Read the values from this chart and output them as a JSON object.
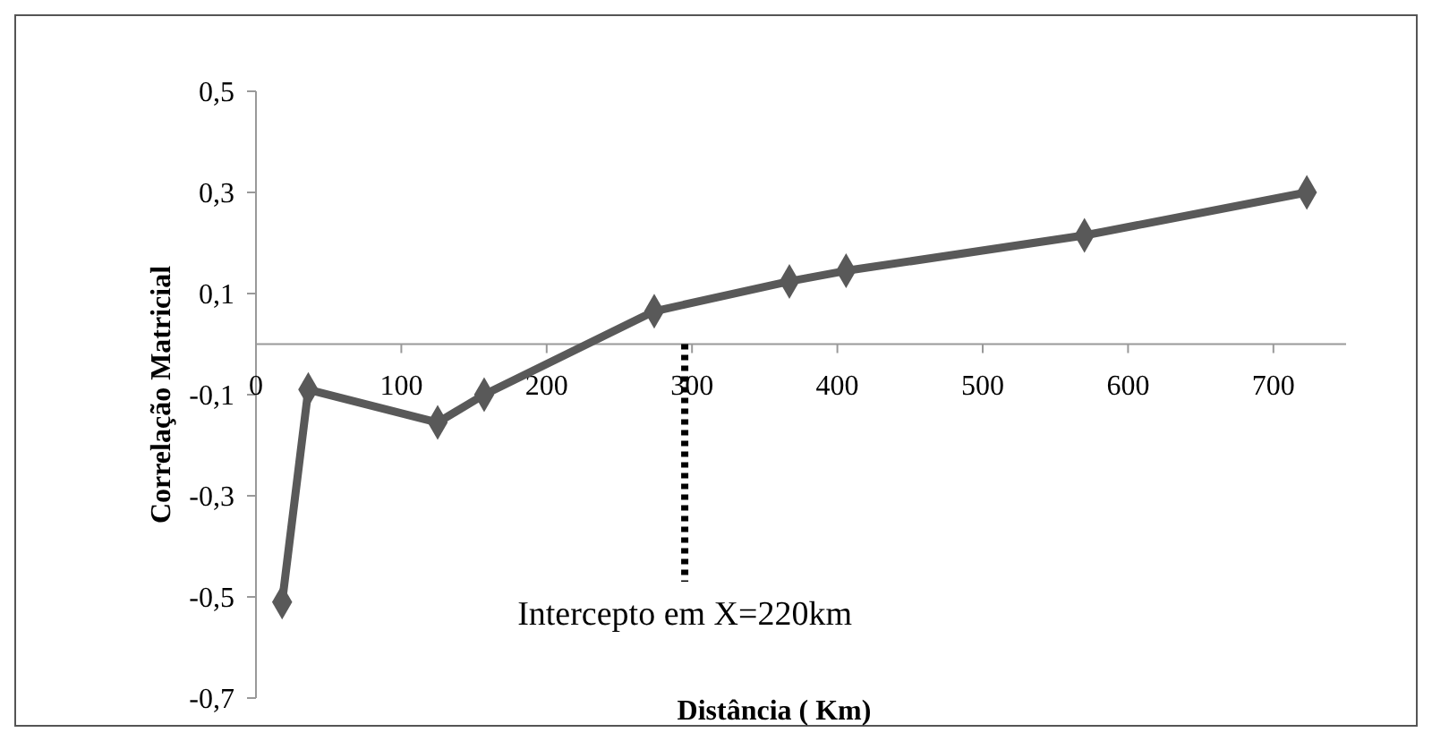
{
  "chart_data": {
    "type": "line",
    "xlabel": "Distância ( Km)",
    "ylabel": "Correlação Matricial",
    "series": [
      {
        "color": "#595959",
        "x": [
          18,
          36,
          125,
          157,
          274,
          367,
          406,
          570,
          723
        ],
        "values": [
          -0.51,
          -0.09,
          -0.155,
          -0.1,
          0.065,
          0.124,
          0.145,
          0.215,
          0.3
        ]
      }
    ],
    "xlim": [
      0,
      750
    ],
    "xticks": [
      0,
      100,
      200,
      300,
      400,
      500,
      600,
      700
    ],
    "ylim": [
      -0.7,
      0.5
    ],
    "yticks": [
      {
        "value": -0.7,
        "label": "-0,7"
      },
      {
        "value": -0.5,
        "label": "-0,5"
      },
      {
        "value": -0.3,
        "label": "-0,3"
      },
      {
        "value": -0.1,
        "label": "-0,1"
      },
      {
        "value": 0.1,
        "label": "0,1"
      },
      {
        "value": 0.3,
        "label": "0,3"
      },
      {
        "value": 0.5,
        "label": "0,5"
      }
    ],
    "ref_lines": [
      {
        "axis": "x",
        "value": 295,
        "color": "#000000",
        "line_style": "dotted"
      }
    ],
    "annotations": [
      "Intercepto em X=220km"
    ],
    "marker": "diamond",
    "line_style": "solid",
    "grid": false
  }
}
